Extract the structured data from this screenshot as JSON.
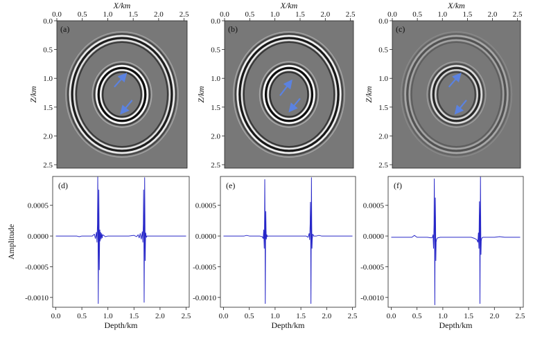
{
  "chart_data": [
    {
      "type": "heatmap",
      "panel_label": "(a)",
      "xlabel": "X/km",
      "ylabel": "Z/km",
      "xlim": [
        0,
        2.56
      ],
      "ylim": [
        2.56,
        0
      ],
      "xticks": [
        "0.0",
        "0.5",
        "1.0",
        "1.5",
        "2.0",
        "2.5"
      ],
      "yticks": [
        "0.0",
        "0.5",
        "1.0",
        "1.5",
        "2.0",
        "2.5"
      ],
      "grid": false,
      "rings": [
        {
          "radius": 0.46,
          "strength": 1.0
        },
        {
          "radius": 0.98,
          "strength": 0.85
        }
      ],
      "arrows": [
        {
          "from": [
            1.13,
            1.15
          ],
          "to": [
            1.35,
            0.93
          ]
        },
        {
          "from": [
            1.48,
            1.38
          ],
          "to": [
            1.27,
            1.6
          ]
        }
      ]
    },
    {
      "type": "heatmap",
      "panel_label": "(b)",
      "xlabel": "X/km",
      "ylabel": "Z/km",
      "xlim": [
        0,
        2.56
      ],
      "ylim": [
        2.56,
        0
      ],
      "xticks": [
        "0.0",
        "0.5",
        "1.0",
        "1.5",
        "2.0",
        "2.5"
      ],
      "yticks": [
        "0.0",
        "0.5",
        "1.0",
        "1.5",
        "2.0",
        "2.5"
      ],
      "grid": false,
      "rings": [
        {
          "radius": 0.46,
          "strength": 1.0
        },
        {
          "radius": 0.98,
          "strength": 0.9
        }
      ],
      "arrows": [
        {
          "from": [
            1.1,
            1.3
          ],
          "to": [
            1.32,
            1.05
          ]
        },
        {
          "from": [
            1.5,
            1.35
          ],
          "to": [
            1.3,
            1.56
          ]
        }
      ]
    },
    {
      "type": "heatmap",
      "panel_label": "(c)",
      "xlabel": "X/km",
      "ylabel": "Z/km",
      "xlim": [
        0,
        2.56
      ],
      "ylim": [
        2.56,
        0
      ],
      "xticks": [
        "0.0",
        "0.5",
        "1.0",
        "1.5",
        "2.0",
        "2.5"
      ],
      "yticks": [
        "0.0",
        "0.5",
        "1.0",
        "1.5",
        "2.0",
        "2.5"
      ],
      "grid": false,
      "rings": [
        {
          "radius": 0.46,
          "strength": 0.75
        },
        {
          "radius": 0.98,
          "strength": 0.35
        }
      ],
      "arrows": [
        {
          "from": [
            1.13,
            1.15
          ],
          "to": [
            1.35,
            0.93
          ]
        },
        {
          "from": [
            1.48,
            1.38
          ],
          "to": [
            1.27,
            1.6
          ]
        }
      ]
    },
    {
      "type": "line",
      "panel_label": "(d)",
      "xlabel": "Depth/km",
      "ylabel": "Amplitude",
      "xlim": [
        -0.06,
        2.56
      ],
      "ylim": [
        -0.00116,
        0.00097
      ],
      "xticks": [
        "0.0",
        "0.5",
        "1.0",
        "1.5",
        "2.0",
        "2.5"
      ],
      "yticks": [
        "0.0005",
        "0.0000",
        "-0.0005",
        "-0.0010"
      ],
      "ytick_values": [
        0.0005,
        0,
        -0.0005,
        -0.001
      ],
      "series": [
        {
          "color": "#2727c8",
          "x": [
            0.0,
            0.2,
            0.4,
            0.45,
            0.5,
            0.7,
            0.74,
            0.76,
            0.78,
            0.79,
            0.8,
            0.805,
            0.81,
            0.815,
            0.82,
            0.825,
            0.83,
            0.835,
            0.84,
            0.845,
            0.85,
            0.86,
            0.87,
            0.88,
            0.89,
            0.9,
            0.92,
            0.95,
            1.0,
            1.1,
            1.2,
            1.3,
            1.4,
            1.5,
            1.55,
            1.58,
            1.6,
            1.62,
            1.64,
            1.66,
            1.67,
            1.68,
            1.685,
            1.69,
            1.695,
            1.7,
            1.705,
            1.71,
            1.715,
            1.72,
            1.725,
            1.73,
            1.74,
            1.75,
            1.76,
            1.8,
            1.9,
            2.0,
            2.1,
            2.2,
            2.3,
            2.4,
            2.5
          ],
          "y": [
            0.0,
            0.0,
            0.0,
            -1e-05,
            0.0,
            0.0,
            3e-05,
            -4e-05,
            6e-05,
            -0.0001,
            0.0002,
            0.00096,
            0.0003,
            -0.0011,
            -0.0002,
            0.00075,
            0.0002,
            -0.00055,
            -0.0001,
            0.0001,
            -8e-05,
            6e-05,
            -5e-05,
            4e-05,
            -3e-05,
            2e-05,
            1e-05,
            -1e-05,
            0.0,
            0.0,
            0.0,
            0.0,
            0.0,
            1e-05,
            -1e-05,
            2e-05,
            -3e-05,
            4e-05,
            -5e-05,
            7e-05,
            -0.0001,
            0.0002,
            0.00075,
            0.0002,
            -0.00108,
            -0.0002,
            0.00095,
            0.0003,
            -0.0004,
            -0.0001,
            5e-05,
            2e-05,
            -2e-05,
            0.0,
            0.0,
            0.0,
            0.0,
            0.0,
            0.0,
            0.0,
            0.0,
            0.0,
            0.0
          ]
        }
      ]
    },
    {
      "type": "line",
      "panel_label": "(e)",
      "xlabel": "Depth/km",
      "ylabel": "",
      "xlim": [
        -0.06,
        2.56
      ],
      "ylim": [
        -0.00116,
        0.00097
      ],
      "xticks": [
        "0.0",
        "0.5",
        "1.0",
        "1.5",
        "2.0",
        "2.5"
      ],
      "yticks": [
        "0.0005",
        "0.0000",
        "-0.0005",
        "-0.0010"
      ],
      "ytick_values": [
        0.0005,
        0,
        -0.0005,
        -0.001
      ],
      "series": [
        {
          "color": "#2727c8",
          "x": [
            0.0,
            0.2,
            0.4,
            0.45,
            0.5,
            0.7,
            0.75,
            0.77,
            0.78,
            0.79,
            0.795,
            0.8,
            0.805,
            0.81,
            0.815,
            0.82,
            0.825,
            0.83,
            0.84,
            0.85,
            0.86,
            0.9,
            1.0,
            1.2,
            1.4,
            1.55,
            1.6,
            1.64,
            1.66,
            1.67,
            1.68,
            1.685,
            1.69,
            1.695,
            1.7,
            1.705,
            1.71,
            1.715,
            1.72,
            1.73,
            1.75,
            1.8,
            1.85,
            1.9,
            2.0,
            2.2,
            2.4,
            2.5
          ],
          "y": [
            0.0,
            0.0,
            0.0,
            1e-05,
            0.0,
            0.0,
            -1e-05,
            -4e-05,
            0.0001,
            -0.0002,
            0.0001,
            0.00092,
            0.0002,
            -0.0011,
            -0.0001,
            0.0004,
            0.0001,
            -5e-05,
            2e-05,
            -1e-05,
            0.0,
            0.0,
            0.0,
            0.0,
            0.0,
            0.0,
            0.0,
            -2e-05,
            4e-05,
            -6e-05,
            0.0002,
            0.00055,
            0.0002,
            -0.0011,
            -0.0001,
            0.00095,
            0.0002,
            -0.0002,
            -6e-05,
            3e-05,
            0.0,
            0.0,
            1e-05,
            0.0,
            0.0,
            0.0,
            0.0,
            0.0
          ]
        }
      ]
    },
    {
      "type": "line",
      "panel_label": "(f)",
      "xlabel": "Depth/km",
      "ylabel": "",
      "xlim": [
        -0.06,
        2.56
      ],
      "ylim": [
        -0.00116,
        0.00097
      ],
      "xticks": [
        "0.0",
        "0.5",
        "1.0",
        "1.5",
        "2.0",
        "2.5"
      ],
      "yticks": [
        "0.0005",
        "0.0000",
        "-0.0005",
        "-0.0010"
      ],
      "ytick_values": [
        0.0005,
        0,
        -0.0005,
        -0.001
      ],
      "series": [
        {
          "color": "#2727c8",
          "x": [
            0.0,
            0.2,
            0.4,
            0.45,
            0.5,
            0.7,
            0.78,
            0.8,
            0.81,
            0.82,
            0.83,
            0.835,
            0.84,
            0.845,
            0.85,
            0.855,
            0.86,
            0.865,
            0.87,
            0.88,
            0.9,
            0.95,
            1.0,
            1.2,
            1.4,
            1.55,
            1.62,
            1.66,
            1.68,
            1.69,
            1.7,
            1.71,
            1.715,
            1.72,
            1.725,
            1.73,
            1.735,
            1.74,
            1.745,
            1.75,
            1.76,
            1.78,
            1.8,
            1.9,
            2.0,
            2.1,
            2.2,
            2.4,
            2.5
          ],
          "y": [
            -2e-05,
            -2e-05,
            -2e-05,
            1e-05,
            -2e-05,
            -2e-05,
            -3e-05,
            -2e-05,
            2e-05,
            -0.0002,
            0.0002,
            0.00093,
            0.0002,
            -0.00112,
            -0.0001,
            0.00062,
            0.0002,
            -0.0004,
            -0.0001,
            -5e-05,
            -3e-05,
            -2e-05,
            -2e-05,
            -2e-05,
            -2e-05,
            -2e-05,
            -4e-05,
            -6e-05,
            -0.0001,
            5e-05,
            -0.0002,
            0.00056,
            0.0002,
            -0.0011,
            -0.0001,
            0.00096,
            0.0002,
            -0.0003,
            -8e-05,
            -5e-05,
            -3e-05,
            -2e-05,
            -2e-05,
            -2e-05,
            -2e-05,
            -1e-05,
            -2e-05,
            -2e-05,
            -2e-05
          ]
        }
      ]
    }
  ]
}
